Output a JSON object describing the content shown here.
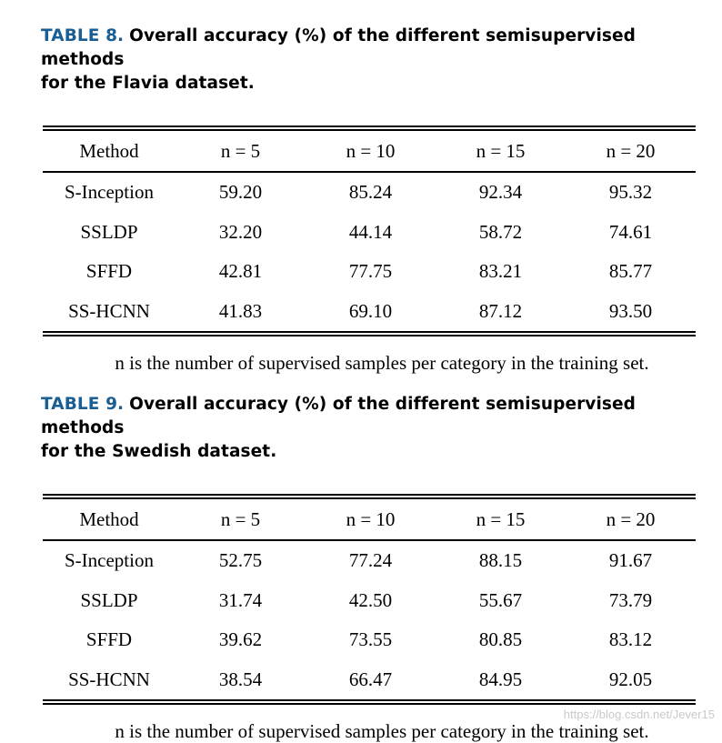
{
  "tables": [
    {
      "label": "TABLE 8.",
      "caption_line1": "Overall accuracy (%) of the different semisupervised methods",
      "caption_line2": "for the Flavia dataset.",
      "headers": [
        "Method",
        "n = 5",
        "n = 10",
        "n = 15",
        "n = 20"
      ],
      "rows": [
        [
          "S-Inception",
          "59.20",
          "85.24",
          "92.34",
          "95.32"
        ],
        [
          "SSLDP",
          "32.20",
          "44.14",
          "58.72",
          "74.61"
        ],
        [
          "SFFD",
          "42.81",
          "77.75",
          "83.21",
          "85.77"
        ],
        [
          "SS-HCNN",
          "41.83",
          "69.10",
          "87.12",
          "93.50"
        ]
      ],
      "note": "n is the number of supervised samples per category in the training set."
    },
    {
      "label": "TABLE 9.",
      "caption_line1": "Overall accuracy (%) of the different semisupervised methods",
      "caption_line2": "for the Swedish dataset.",
      "headers": [
        "Method",
        "n = 5",
        "n = 10",
        "n = 15",
        "n = 20"
      ],
      "rows": [
        [
          "S-Inception",
          "52.75",
          "77.24",
          "88.15",
          "91.67"
        ],
        [
          "SSLDP",
          "31.74",
          "42.50",
          "55.67",
          "73.79"
        ],
        [
          "SFFD",
          "39.62",
          "73.55",
          "80.85",
          "83.12"
        ],
        [
          "SS-HCNN",
          "38.54",
          "66.47",
          "84.95",
          "92.05"
        ]
      ],
      "note": "n is the number of supervised samples per category in the training set."
    }
  ],
  "watermark": "https://blog.csdn.net/Jever15",
  "colors": {
    "label": "#1a5e93",
    "text": "#000000",
    "watermark": "#c9c9c9"
  }
}
